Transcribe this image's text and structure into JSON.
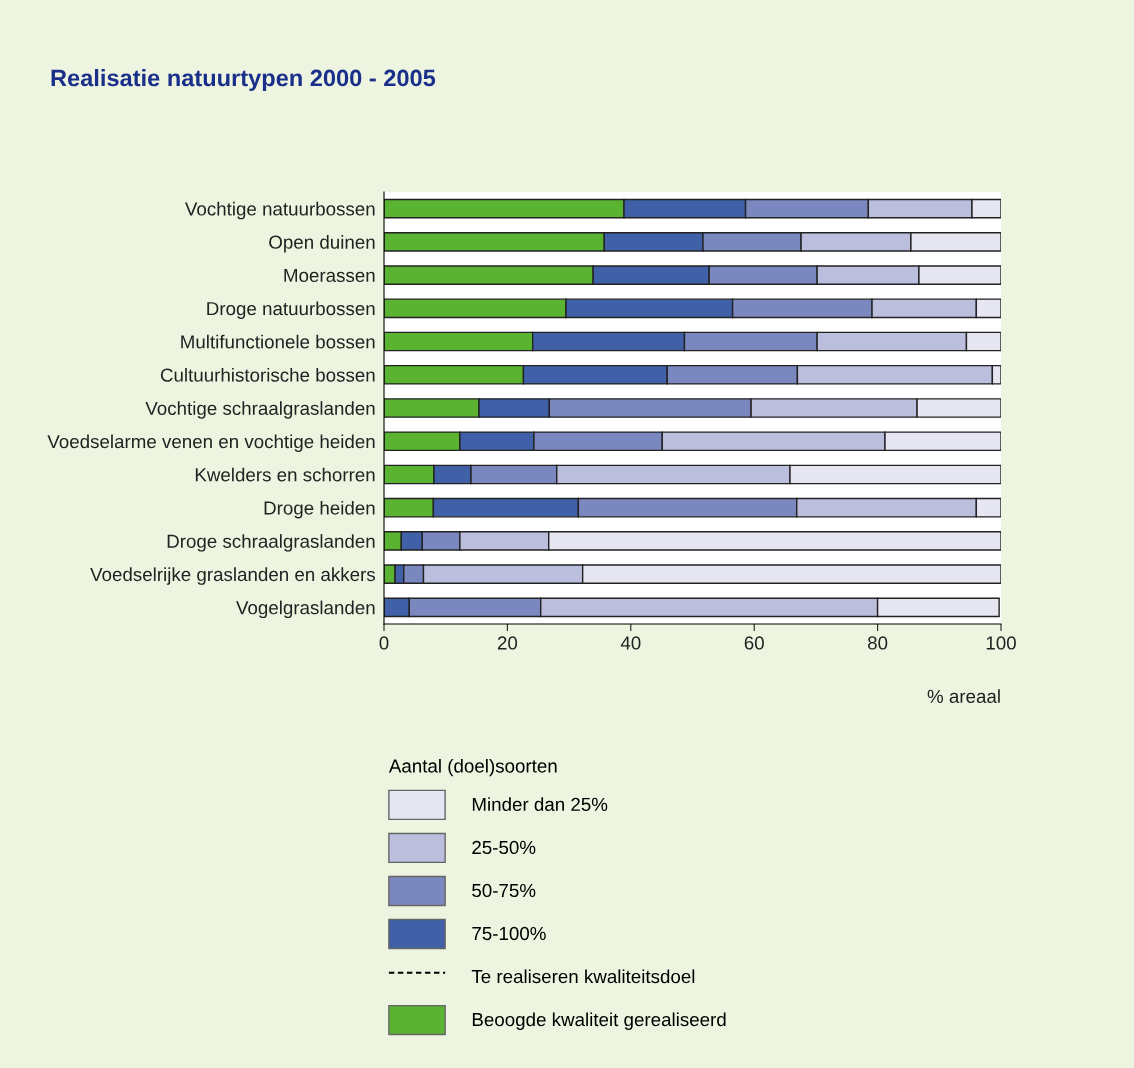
{
  "chart_data": {
    "type": "bar",
    "orientation": "horizontal",
    "stacked": true,
    "title": "Realisatie natuurtypen 2000 - 2005",
    "xlabel": "% areaal",
    "legend_title": "Aantal (doel)soorten",
    "legend": "bottom",
    "grid": false,
    "xlim": [
      0,
      100
    ],
    "xticks": [
      0,
      20,
      40,
      60,
      80,
      100
    ],
    "categories": [
      "Vochtige natuurbossen",
      "Open duinen",
      "Moerassen",
      "Droge natuurbossen",
      "Multifunctionele bossen",
      "Cultuurhistorische bossen",
      "Vochtige schraalgraslanden",
      "Voedselarme venen en vochtige heiden",
      "Kwelders en schorren",
      "Droge heiden",
      "Droge schraalgraslanden",
      "Voedselrijke graslanden en akkers",
      "Vogelgraslanden"
    ],
    "series": [
      {
        "name": "Beoogde kwaliteit gerealiseerd",
        "color": "#5ab432",
        "values": [
          38.9,
          35.7,
          33.9,
          29.5,
          24.1,
          22.6,
          15.4,
          12.3,
          8.1,
          8.0,
          2.8,
          1.8,
          null
        ]
      },
      {
        "name": "75-100%",
        "color": "#4060a8",
        "values": [
          19.7,
          16.0,
          18.8,
          27.0,
          24.6,
          23.3,
          11.4,
          12.0,
          6.0,
          23.5,
          3.4,
          1.4,
          4.1
        ]
      },
      {
        "name": "50-75%",
        "color": "#7b88c0",
        "values": [
          19.9,
          15.9,
          17.5,
          22.6,
          21.5,
          21.1,
          32.7,
          20.8,
          13.9,
          35.4,
          6.1,
          3.2,
          21.3
        ]
      },
      {
        "name": "25-50%",
        "color": "#bbbedd",
        "values": [
          16.8,
          17.8,
          16.5,
          16.9,
          24.2,
          31.6,
          26.9,
          36.1,
          37.8,
          29.1,
          14.4,
          25.8,
          54.6
        ]
      },
      {
        "name": "Minder dan 25%",
        "color": "#e6e6f3",
        "values": [
          4.7,
          14.6,
          13.3,
          4.0,
          5.6,
          1.4,
          13.6,
          18.8,
          34.2,
          4.0,
          73.3,
          67.8,
          19.7
        ]
      },
      {
        "name": "Te realiseren kwaliteitsdoel",
        "type": "line",
        "line_style": "dashed",
        "color": "#000000",
        "values": [
          null,
          null,
          null,
          null,
          null,
          null,
          null,
          null,
          null,
          null,
          null,
          null,
          null
        ]
      }
    ]
  }
}
